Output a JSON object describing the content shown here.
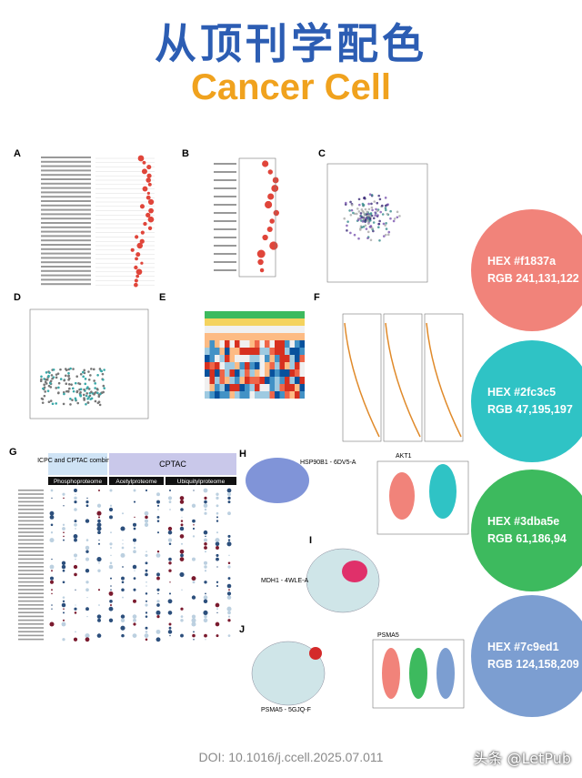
{
  "header": {
    "title": "从顶刊学配色",
    "subtitle": "Cancer Cell"
  },
  "figure": {
    "panels": [
      "A",
      "B",
      "C",
      "D",
      "E",
      "F",
      "G",
      "H",
      "I",
      "J"
    ],
    "labels": {
      "g_combined": "ICPC and CPTAC combined",
      "g_cptac": "CPTAC",
      "g_phospho": "Phosphoproteome",
      "g_acetyl": "Acetylproteome",
      "g_ubiq": "Ubiquitylproteome",
      "h_structure": "HSP90B1 - 6DV5-A",
      "h_violin": "AKT1",
      "i_structure": "MDH1 - 4WLE-A",
      "j_structure": "PSMA5 - 5GJQ-F",
      "j_violin": "PSMA5"
    }
  },
  "swatches": [
    {
      "hex": "HEX #f1837a",
      "rgb": "RGB 241,131,122",
      "color": "#f1837a"
    },
    {
      "hex": "HEX #2fc3c5",
      "rgb": "RGB 47,195,197",
      "color": "#2fc3c5"
    },
    {
      "hex": "HEX #3dba5e",
      "rgb": "RGB 61,186,94",
      "color": "#3dba5e"
    },
    {
      "hex": "HEX #7c9ed1",
      "rgb": "RGB 124,158,209",
      "color": "#7c9ed1"
    }
  ],
  "footer": {
    "doi": "DOI: 10.1016/j.ccell.2025.07.011",
    "watermark": "头条 @LetPub"
  }
}
